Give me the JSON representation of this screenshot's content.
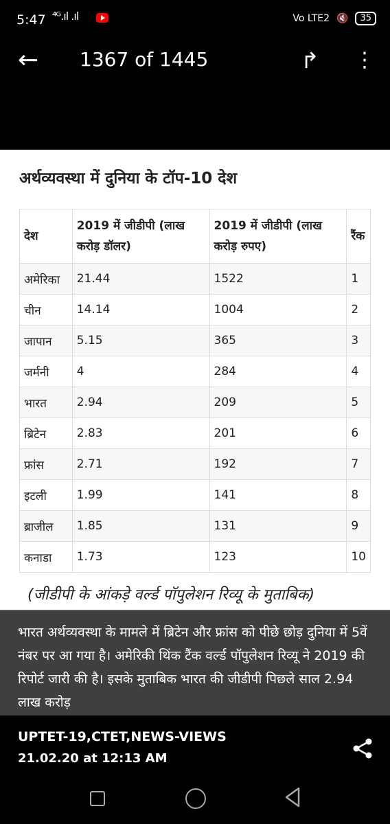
{
  "status_bar": {
    "time": "5:47",
    "signal": "⁴ᴳ.ıl .ıl",
    "volte": "Vo LTE2",
    "battery": "35"
  },
  "app_bar": {
    "title": "1367 of 1445"
  },
  "image": {
    "heading": "अर्थव्यवस्था में दुनिया के टॉप-10 देश",
    "table": {
      "headers": [
        "देश",
        "2019 में जीडीपी (लाख करोड़ डॉलर)",
        "2019 में जीडीपी (लाख करोड़ रुपए)",
        "रैंक"
      ],
      "rows": [
        [
          "अमेरिका",
          "21.44",
          "1522",
          "1"
        ],
        [
          "चीन",
          "14.14",
          "1004",
          "2"
        ],
        [
          "जापान",
          "5.15",
          "365",
          "3"
        ],
        [
          "जर्मनी",
          "4",
          "284",
          "4"
        ],
        [
          "भारत",
          "2.94",
          "209",
          "5"
        ],
        [
          "ब्रिटेन",
          "2.83",
          "201",
          "6"
        ],
        [
          "फ्रांस",
          "2.71",
          "192",
          "7"
        ],
        [
          "इटली",
          "1.99",
          "141",
          "8"
        ],
        [
          "ब्राजील",
          "1.85",
          "131",
          "9"
        ],
        [
          "कनाडा",
          "1.73",
          "123",
          "10"
        ]
      ]
    },
    "note": "(जीडीपी के आंकड़े वर्ल्ड पॉपुलेशन रिव्यू के मुताबिक)"
  },
  "caption": "भारत अर्थव्यवस्था के मामले में ब्रिटेन और फ्रांस को पीछे छोड़ दुनिया में 5वें नंबर पर आ गया है। अमेरिकी थिंक टैंक वर्ल्ड पॉपुलेशन रिव्यू ने 2019 की रिपोर्ट जारी की है। इसके मुताबिक भारत की जीडीपी पिछले साल 2.94 लाख करोड़",
  "footer": {
    "source": "UPTET-19,CTET,NEWS-VIEWS",
    "date": "21.02.20 at 12:13 AM"
  },
  "icons": [
    "back-arrow-icon",
    "forward-icon",
    "more-vert-icon",
    "share-icon",
    "recent-apps-icon",
    "home-icon",
    "back-icon"
  ]
}
